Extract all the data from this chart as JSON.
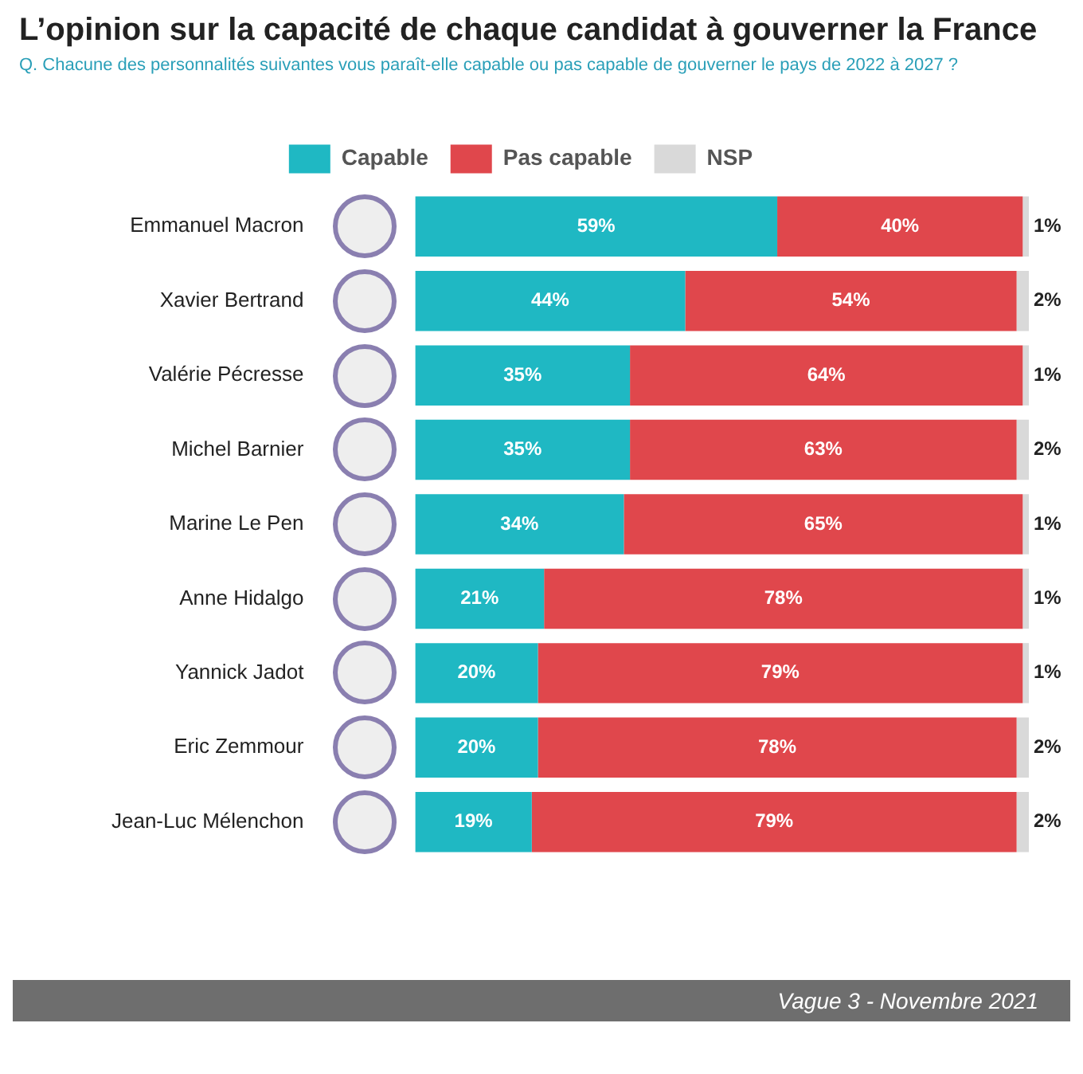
{
  "chart_data": {
    "type": "bar",
    "orientation": "horizontal",
    "stacked": true,
    "title": "L’opinion sur la capacité de chaque candidat à gouverner la France",
    "subtitle": "Q. Chacune des personnalités suivantes vous paraît-elle capable ou pas capable de gouverner le pays de 2022 à 2027 ?",
    "categories": [
      "Emmanuel Macron",
      "Xavier Bertrand",
      "Valérie Pécresse",
      "Michel Barnier",
      "Marine Le Pen",
      "Anne Hidalgo",
      "Yannick Jadot",
      "Eric Zemmour",
      "Jean-Luc Mélenchon"
    ],
    "series": [
      {
        "name": "Capable",
        "color": "#1fb8c3",
        "values": [
          59,
          44,
          35,
          35,
          34,
          21,
          20,
          20,
          19
        ],
        "value_labels": [
          "59%",
          "44%",
          "35%",
          "35%",
          "34%",
          "21%",
          "20%",
          "20%",
          "19%"
        ]
      },
      {
        "name": "Pas capable",
        "color": "#e0474c",
        "values": [
          40,
          54,
          64,
          63,
          65,
          78,
          79,
          78,
          79
        ],
        "value_labels": [
          "40%",
          "54%",
          "64%",
          "63%",
          "65%",
          "78%",
          "79%",
          "78%",
          "79%"
        ]
      },
      {
        "name": "NSP",
        "color": "#d9d9d9",
        "values": [
          1,
          2,
          1,
          2,
          1,
          1,
          1,
          2,
          2
        ],
        "value_labels": [
          "1%",
          "2%",
          "1%",
          "2%",
          "1%",
          "1%",
          "1%",
          "2%",
          "2%"
        ]
      }
    ],
    "legend": "top",
    "tick_labels": "y",
    "annotations": [
      "Vague 3 - Novembre 2021"
    ]
  }
}
